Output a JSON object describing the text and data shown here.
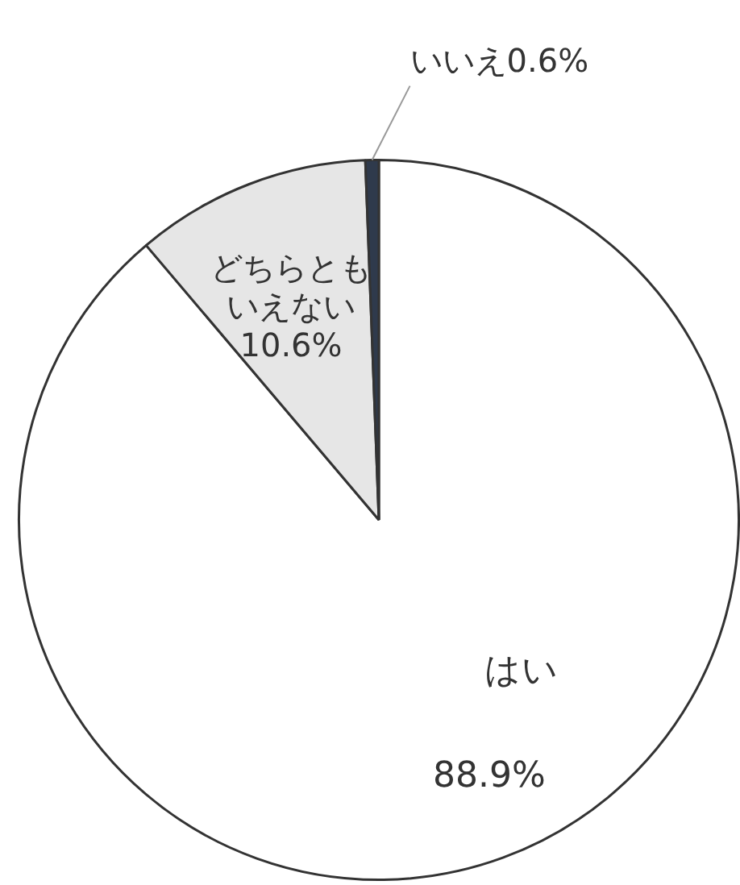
{
  "chart_data": {
    "type": "pie",
    "categories": [
      "はい",
      "どちらともいえない",
      "いいえ"
    ],
    "values": [
      88.9,
      10.6,
      0.6
    ],
    "colors": [
      "#ffffff",
      "#e6e6e6",
      "#2f3a4c"
    ],
    "value_labels": [
      "88.9%",
      "10.6%",
      "0.6%"
    ],
    "legend": false
  }
}
